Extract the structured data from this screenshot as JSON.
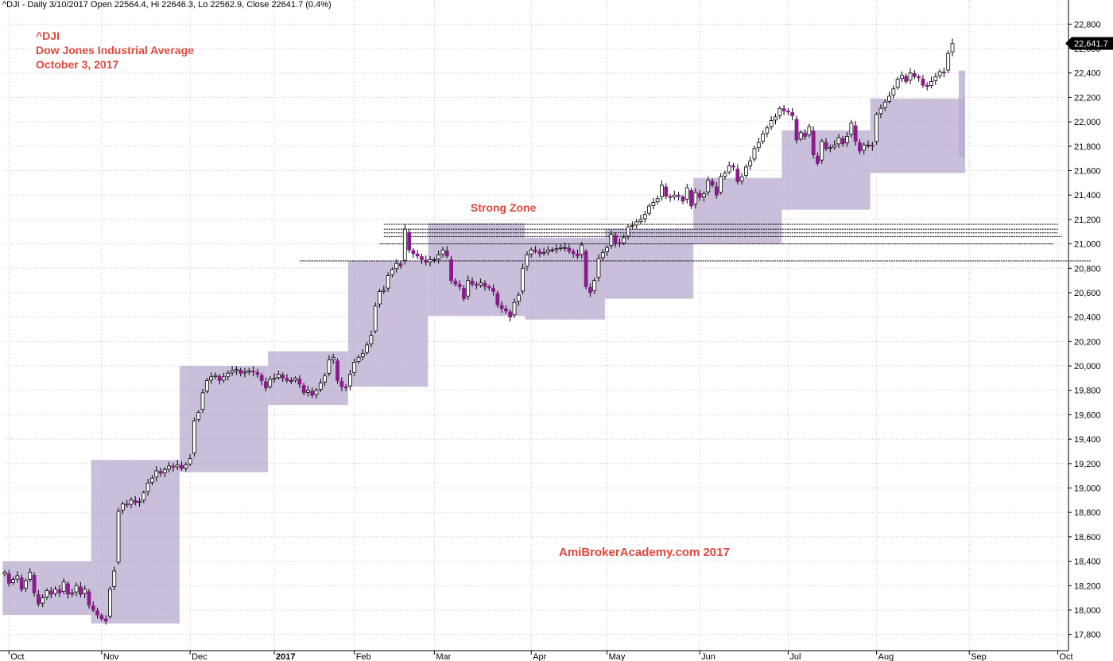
{
  "header": {
    "text": "^DJI - Daily 3/10/2017 Open 22564.4, Hi 22646.3, Lo 22562.9, Close 22641.7 (0.4%)"
  },
  "titles": {
    "symbol": "^DJI",
    "name": "Dow Jones Industrial Average",
    "date": "October 3, 2017"
  },
  "annotations": {
    "strong_zone": "Strong Zone",
    "watermark": "AmiBrokerAcademy.com  2017"
  },
  "colors": {
    "background": "#ffffff",
    "grid": "#c8c8c8",
    "up_candle": "#ffffff",
    "down_candle": "#8b1a8b",
    "box_fill": "#b8a9cf",
    "title_red": "#e0463a",
    "last_price_bg": "#000000"
  },
  "chart_data": {
    "type": "candlestick",
    "y_axis": {
      "min": 17700,
      "max": 22900,
      "ticks": [
        17800,
        18000,
        18200,
        18400,
        18600,
        18800,
        19000,
        19200,
        19400,
        19600,
        19800,
        20000,
        20200,
        20400,
        20600,
        20800,
        21000,
        21200,
        21400,
        21600,
        21800,
        22000,
        22200,
        22400,
        22600,
        22800
      ],
      "tick_labels": [
        "17,800",
        "18,000",
        "18,200",
        "18,400",
        "18,600",
        "18,800",
        "19,000",
        "19,200",
        "19,400",
        "19,600",
        "19,800",
        "20,000",
        "20,200",
        "20,400",
        "20,600",
        "20,800",
        "21,000",
        "21,200",
        "21,400",
        "21,600",
        "21,800",
        "22,000",
        "22,200",
        "22,400",
        "22,600",
        "22,800"
      ],
      "side": "right",
      "grid": true
    },
    "x_axis": {
      "labels": [
        "Oct",
        "Nov",
        "Dec",
        "2017",
        "Feb",
        "Mar",
        "Apr",
        "May",
        "Jun",
        "Jul",
        "Aug",
        "Sep",
        "Oct"
      ],
      "grid": true,
      "label_positions": [
        1,
        23,
        44,
        64,
        83,
        102,
        125,
        143,
        165,
        186,
        207,
        229,
        250
      ]
    },
    "last_price": "22,641.7",
    "monthly_boxes": [
      {
        "month": "Oct",
        "start": 0,
        "end": 21,
        "low": 17960,
        "high": 18400
      },
      {
        "month": "Nov",
        "start": 21,
        "end": 42,
        "low": 17890,
        "high": 19230
      },
      {
        "month": "Dec",
        "start": 42,
        "end": 63,
        "low": 19130,
        "high": 20000
      },
      {
        "month": "Jan",
        "start": 63,
        "end": 82,
        "low": 19680,
        "high": 20120
      },
      {
        "month": "Feb",
        "start": 82,
        "end": 101,
        "low": 19830,
        "high": 20860
      },
      {
        "month": "Mar",
        "start": 101,
        "end": 124,
        "low": 20410,
        "high": 21170
      },
      {
        "month": "Apr",
        "start": 124,
        "end": 143,
        "low": 20380,
        "high": 21050
      },
      {
        "month": "May",
        "start": 143,
        "end": 164,
        "low": 20550,
        "high": 21120
      },
      {
        "month": "Jun",
        "start": 164,
        "end": 185,
        "low": 21000,
        "high": 21540
      },
      {
        "month": "Jul",
        "start": 185,
        "end": 206,
        "low": 21280,
        "high": 21930
      },
      {
        "month": "Aug",
        "start": 206,
        "end": 227,
        "low": 21580,
        "high": 22190
      },
      {
        "month": "Sep",
        "start": 227,
        "end": 246,
        "low": 21710,
        "high": 22420
      },
      {
        "month": "Oct",
        "start": 246,
        "end": 251,
        "low": 22420,
        "high": 22650
      }
    ],
    "zone_lines": [
      {
        "price": 21160,
        "from": 90,
        "to": 250
      },
      {
        "price": 21120,
        "from": 90,
        "to": 250
      },
      {
        "price": 21090,
        "from": 90,
        "to": 250
      },
      {
        "price": 21060,
        "from": 90,
        "to": 251
      },
      {
        "price": 21000,
        "from": 89,
        "to": 249
      },
      {
        "price": 20860,
        "from": 70,
        "to": 258
      }
    ],
    "closes": [
      18310,
      18220,
      18250,
      18280,
      18170,
      18240,
      18310,
      18140,
      18050,
      18100,
      18160,
      18130,
      18170,
      18140,
      18230,
      18130,
      18140,
      18200,
      18130,
      18170,
      18040,
      18000,
      17960,
      17930,
      17910,
      18170,
      18320,
      18810,
      18870,
      18860,
      18900,
      18880,
      18890,
      18960,
      19040,
      19080,
      19140,
      19120,
      19150,
      19180,
      19170,
      19190,
      19160,
      19190,
      19240,
      19550,
      19620,
      19780,
      19880,
      19910,
      19920,
      19880,
      19910,
      19940,
      19960,
      19970,
      19940,
      19950,
      19960,
      19950,
      19930,
      19880,
      19820,
      19890,
      19900,
      19930,
      19900,
      19880,
      19880,
      19900,
      19850,
      19780,
      19800,
      19760,
      19800,
      19860,
      19920,
      20050,
      20070,
      19880,
      19830,
      19820,
      19930,
      20030,
      20070,
      20100,
      20170,
      20250,
      20490,
      20610,
      20620,
      20740,
      20790,
      20840,
      20820,
      21120,
      20950,
      20920,
      20900,
      20870,
      20850,
      20870,
      20870,
      20910,
      20950,
      20900,
      20700,
      20670,
      20650,
      20550,
      20700,
      20670,
      20660,
      20680,
      20650,
      20640,
      20610,
      20500,
      20470,
      20450,
      20400,
      20520,
      20580,
      20800,
      20910,
      20950,
      20940,
      20920,
      20930,
      20950,
      20950,
      20960,
      20970,
      20970,
      20940,
      20920,
      20900,
      20990,
      20650,
      20600,
      20700,
      20880,
      20930,
      20970,
      21080,
      21010,
      21000,
      21050,
      21140,
      21150,
      21180,
      21200,
      21240,
      21310,
      21340,
      21370,
      21480,
      21390,
      21380,
      21400,
      21390,
      21350,
      21460,
      21310,
      21420,
      21380,
      21410,
      21520,
      21480,
      21400,
      21550,
      21580,
      21640,
      21630,
      21510,
      21550,
      21630,
      21680,
      21780,
      21830,
      21900,
      21950,
      22010,
      22040,
      22110,
      22090,
      22080,
      22050,
      21850,
      21910,
      21880,
      21960,
      21730,
      21660,
      21840,
      21780,
      21790,
      21810,
      21870,
      21820,
      21880,
      21990,
      21840,
      21760,
      21810,
      21810,
      21800,
      22060,
      22110,
      22160,
      22210,
      22270,
      22350,
      22380,
      22330,
      22400,
      22370,
      22360,
      22300,
      22290,
      22330,
      22370,
      22410,
      22400,
      22560,
      22641.7
    ]
  }
}
